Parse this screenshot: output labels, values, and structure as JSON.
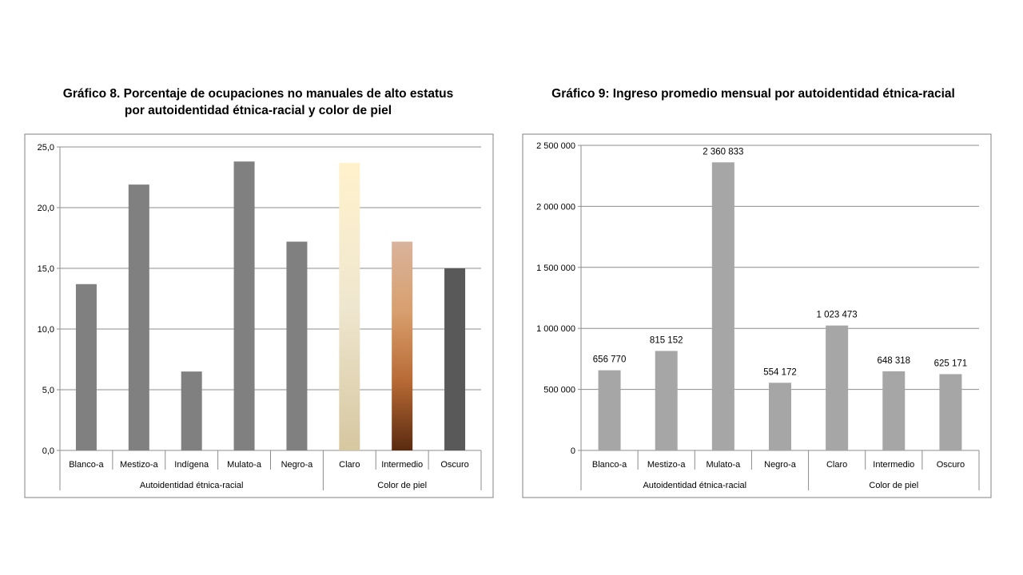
{
  "chart_data": [
    {
      "type": "bar",
      "title": "Gráfico 8. Porcentaje de ocupaciones no manuales de alto estatus por autoidentidad étnica-racial y color de piel",
      "title_lines": [
        "Gráfico 8. Porcentaje de ocupaciones no manuales de alto estatus",
        "por autoidentidad étnica-racial y color de piel"
      ],
      "categories": [
        "Blanco-a",
        "Mestizo-a",
        "Indígena",
        "Mulato-a",
        "Negro-a",
        "Claro",
        "Intermedio",
        "Oscuro"
      ],
      "values": [
        13.7,
        21.9,
        6.5,
        23.8,
        17.2,
        23.7,
        17.2,
        15.0
      ],
      "groups": [
        {
          "label": "Autoidentidad étnica-racial",
          "count": 5
        },
        {
          "label": "Color de piel",
          "count": 3
        }
      ],
      "ylim": [
        0,
        25
      ],
      "yticks": [
        "0,0",
        "5,0",
        "10,0",
        "15,0",
        "20,0",
        "25,0"
      ],
      "bar_colors": [
        "#808080",
        "#808080",
        "#808080",
        "#808080",
        "#808080",
        "gradient-claro",
        "gradient-intermedio",
        "#595959"
      ],
      "gradients": {
        "gradient-claro": [
          "#fff2cc",
          "#efe6cf",
          "#d6c7a0"
        ],
        "gradient-intermedio": [
          "#d9b39c",
          "#d89f6e",
          "#b86a35",
          "#5a2a10"
        ]
      },
      "grid": true,
      "legend": "none"
    },
    {
      "type": "bar",
      "title": "Gráfico 9: Ingreso promedio mensual por autoidentidad étnica-racial",
      "title_lines": [
        "Gráfico 9: Ingreso promedio mensual por autoidentidad étnica-racial"
      ],
      "categories": [
        "Blanco-a",
        "Mestizo-a",
        "Mulato-a",
        "Negro-a",
        "Claro",
        "Intermedio",
        "Oscuro"
      ],
      "values": [
        656770,
        815152,
        2360833,
        554172,
        1023473,
        648318,
        625171
      ],
      "data_labels": [
        "656 770",
        "815 152",
        "2 360 833",
        "554 172",
        "1 023 473",
        "648 318",
        "625 171"
      ],
      "groups": [
        {
          "label": "Autoidentidad étnica-racial",
          "count": 4
        },
        {
          "label": "Color de piel",
          "count": 3
        }
      ],
      "ylim": [
        0,
        2500000
      ],
      "yticks": [
        "0",
        "500 000",
        "1 000 000",
        "1 500 000",
        "2 000 000",
        "2 500 000"
      ],
      "bar_color": "#a6a6a6",
      "grid": true,
      "legend": "none"
    }
  ]
}
